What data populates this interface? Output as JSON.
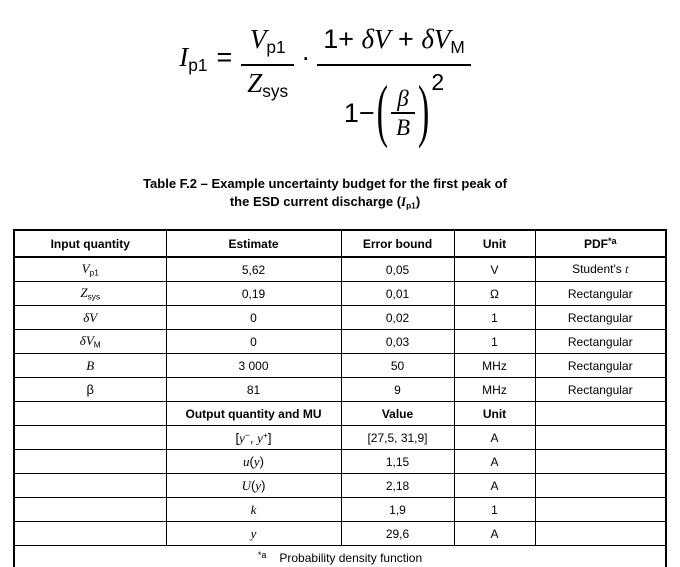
{
  "formula": {
    "lhs": [
      {
        "t": "I",
        "s": "it"
      },
      {
        "t": "p1",
        "s": "sub"
      }
    ],
    "equals": "=",
    "frac1": {
      "num": [
        {
          "t": "V",
          "s": "it"
        },
        {
          "t": "p1",
          "s": "sub"
        }
      ],
      "den": [
        {
          "t": "Z",
          "s": "it"
        },
        {
          "t": "sys",
          "s": "sub"
        }
      ]
    },
    "dot": "·",
    "frac2": {
      "num": [
        {
          "t": "1+ ",
          "s": "up"
        },
        {
          "t": "δV",
          "s": "it"
        },
        {
          "t": " + ",
          "s": "up"
        },
        {
          "t": "δV",
          "s": "it"
        },
        {
          "t": "M",
          "s": "sub"
        }
      ],
      "den_prefix": [
        {
          "t": "1−",
          "s": "up"
        }
      ],
      "lparen": "(",
      "inner_num": [
        {
          "t": "β",
          "s": "it"
        }
      ],
      "inner_den": [
        {
          "t": "B",
          "s": "it"
        }
      ],
      "rparen": ")",
      "exponent": "2"
    }
  },
  "caption": {
    "line1": "Table F.2 – Example uncertainty budget for the first peak of",
    "line2": [
      {
        "t": "the ESD current discharge (",
        "s": "up"
      },
      {
        "t": "I",
        "s": "it"
      },
      {
        "t": "p1",
        "s": "sub"
      },
      {
        "t": ")",
        "s": "up"
      }
    ]
  },
  "table": {
    "headers": {
      "input": "Input quantity",
      "estimate": "Estimate",
      "error": "Error bound",
      "unit": "Unit",
      "pdf": "PDF",
      "pdf_marker": "*a"
    },
    "input_rows": [
      {
        "qty": [
          {
            "t": "V",
            "s": "it"
          },
          {
            "t": "p1",
            "s": "sub"
          }
        ],
        "estimate": "5,62",
        "error": "0,05",
        "unit": "V",
        "pdf": [
          {
            "t": "Student's ",
            "s": "up"
          },
          {
            "t": "t",
            "s": "it"
          }
        ]
      },
      {
        "qty": [
          {
            "t": "Z",
            "s": "it"
          },
          {
            "t": "sys",
            "s": "sub"
          }
        ],
        "estimate": "0,19",
        "error": "0,01",
        "unit": "Ω",
        "pdf": [
          {
            "t": "Rectangular",
            "s": "up"
          }
        ]
      },
      {
        "qty": [
          {
            "t": "δV",
            "s": "it"
          }
        ],
        "estimate": "0",
        "error": "0,02",
        "unit": "1",
        "pdf": [
          {
            "t": "Rectangular",
            "s": "up"
          }
        ]
      },
      {
        "qty": [
          {
            "t": "δV",
            "s": "it"
          },
          {
            "t": "M",
            "s": "sub"
          }
        ],
        "estimate": "0",
        "error": "0,03",
        "unit": "1",
        "pdf": [
          {
            "t": "Rectangular",
            "s": "up"
          }
        ]
      },
      {
        "qty": [
          {
            "t": "B",
            "s": "it"
          }
        ],
        "estimate": "3 000",
        "error": "50",
        "unit": "MHz",
        "pdf": [
          {
            "t": "Rectangular",
            "s": "up"
          }
        ]
      },
      {
        "qty": [
          {
            "t": "β",
            "s": "up"
          }
        ],
        "estimate": "81",
        "error": "9",
        "unit": "MHz",
        "pdf": [
          {
            "t": "Rectangular",
            "s": "up"
          }
        ]
      }
    ],
    "output_header": {
      "label": "Output quantity and MU",
      "value": "Value",
      "unit": "Unit"
    },
    "output_rows": [
      {
        "label": [
          {
            "t": "[",
            "s": "up"
          },
          {
            "t": "y",
            "s": "it"
          },
          {
            "t": "−",
            "s": "sup"
          },
          {
            "t": ", ",
            "s": "up"
          },
          {
            "t": "y",
            "s": "it"
          },
          {
            "t": "+",
            "s": "sup"
          },
          {
            "t": "]",
            "s": "up"
          }
        ],
        "value": "[27,5, 31,9]",
        "unit": "A"
      },
      {
        "label": [
          {
            "t": "u",
            "s": "it"
          },
          {
            "t": "(",
            "s": "up"
          },
          {
            "t": "y",
            "s": "it"
          },
          {
            "t": ")",
            "s": "up"
          }
        ],
        "value": "1,15",
        "unit": "A"
      },
      {
        "label": [
          {
            "t": "U",
            "s": "it"
          },
          {
            "t": "(",
            "s": "up"
          },
          {
            "t": "y",
            "s": "it"
          },
          {
            "t": ")",
            "s": "up"
          }
        ],
        "value": "2,18",
        "unit": "A"
      },
      {
        "label": [
          {
            "t": "k",
            "s": "it"
          }
        ],
        "value": "1,9",
        "unit": "1"
      },
      {
        "label": [
          {
            "t": "y",
            "s": "it"
          }
        ],
        "value": "29,6",
        "unit": "A"
      }
    ],
    "footnote": {
      "marker": "*a",
      "text": "Probability density function"
    }
  }
}
